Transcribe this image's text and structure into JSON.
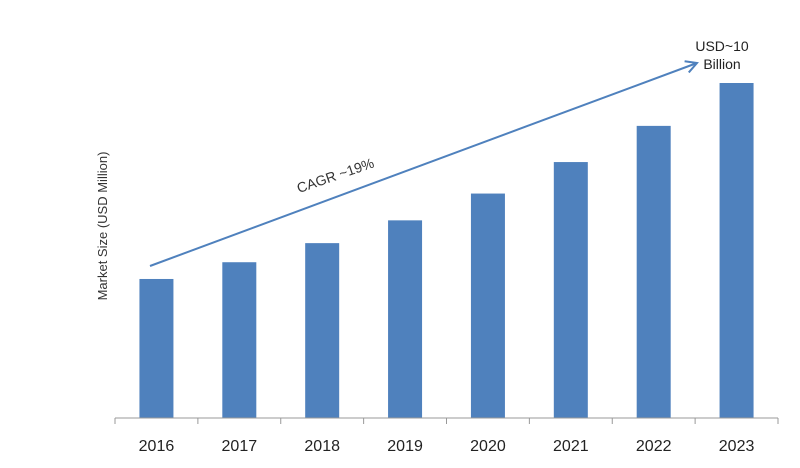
{
  "chart_data": {
    "type": "bar",
    "title": "",
    "xlabel": "",
    "ylabel": "Market Size (USD Million)",
    "categories": [
      "2016",
      "2017",
      "2018",
      "2019",
      "2020",
      "2021",
      "2022",
      "2023"
    ],
    "values": [
      4150,
      4650,
      5220,
      5900,
      6700,
      7640,
      8720,
      10000
    ],
    "ylim": [
      0,
      10000
    ],
    "grid": false,
    "bar_color": "#4f81bd",
    "annotations": {
      "cagr": "CAGR ~19%",
      "end_value_line1": "USD~10",
      "end_value_line2": "Billion"
    }
  }
}
